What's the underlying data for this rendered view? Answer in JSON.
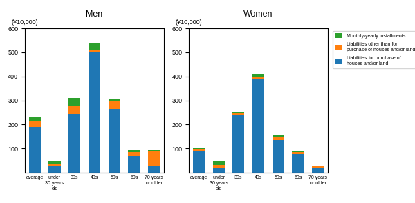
{
  "chart_data": [
    {
      "type": "bar",
      "stacked": true,
      "title": "Men",
      "ylabel": "(¥10,000)",
      "categories": [
        "average",
        "under\n30 years\nold",
        "30s",
        "40s",
        "50s",
        "60s",
        "70 years\nor older"
      ],
      "series": [
        {
          "name": "Liabilities for purchase of\nhouses and/or land",
          "values": [
            190,
            25,
            245,
            500,
            265,
            70,
            25
          ]
        },
        {
          "name": "Liabilities other than for\npurchase of houses and/or land",
          "values": [
            25,
            10,
            30,
            10,
            30,
            15,
            65
          ]
        },
        {
          "name": "Monthly/yearly installments",
          "values": [
            15,
            15,
            35,
            28,
            8,
            10,
            5
          ]
        }
      ],
      "ylim": [
        0,
        600
      ],
      "yticks": [
        100,
        200,
        300,
        400,
        500,
        600
      ]
    },
    {
      "type": "bar",
      "stacked": true,
      "title": "Women",
      "ylabel": "(¥10,000)",
      "categories": [
        "average",
        "under\n30 years\nold",
        "30s",
        "40s",
        "50s",
        "60s",
        "70 years\nor older"
      ],
      "series": [
        {
          "name": "Liabilities for purchase of\nhouses and/or land",
          "values": [
            93,
            20,
            240,
            390,
            135,
            78,
            20
          ]
        },
        {
          "name": "Liabilities other than for\npurchase of houses and/or land",
          "values": [
            5,
            10,
            8,
            10,
            15,
            8,
            5
          ]
        },
        {
          "name": "Monthly/yearly installments",
          "values": [
            5,
            20,
            5,
            10,
            8,
            5,
            3
          ]
        }
      ],
      "ylim": [
        0,
        600
      ],
      "yticks": [
        100,
        200,
        300,
        400,
        500,
        600
      ],
      "legend": "upper left"
    }
  ]
}
